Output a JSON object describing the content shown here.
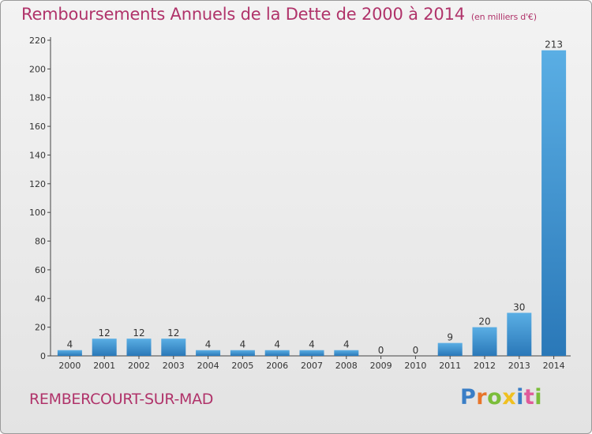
{
  "header": {
    "title": "Remboursements Annuels de la Dette de 2000 à 2014",
    "unit": "(en milliers d'€)"
  },
  "footer": {
    "commune": "REMBERCOURT-SUR-MAD",
    "logo": "Proxiti"
  },
  "colors": {
    "title": "#b0336a",
    "bar_light": "#5aaee4",
    "bar_dark": "#2a78b8",
    "logo_p": "#3a7ec6",
    "logo_r": "#e8752a",
    "logo_o": "#7bbd3a",
    "logo_x": "#f0c020",
    "logo_i": "#3a7ec6",
    "logo_t": "#e05a9a",
    "logo_i2": "#7bbd3a"
  },
  "chart_data": {
    "type": "bar",
    "title": "Remboursements Annuels de la Dette de 2000 à 2014",
    "unit": "(en milliers d'€)",
    "categories": [
      "2000",
      "2001",
      "2002",
      "2003",
      "2004",
      "2005",
      "2006",
      "2007",
      "2008",
      "2009",
      "2010",
      "2011",
      "2012",
      "2013",
      "2014"
    ],
    "values": [
      4,
      12,
      12,
      12,
      4,
      4,
      4,
      4,
      4,
      0,
      0,
      9,
      20,
      30,
      213
    ],
    "ylim": [
      0,
      220
    ],
    "yticks": [
      0,
      20,
      40,
      60,
      80,
      100,
      120,
      140,
      160,
      180,
      200,
      220
    ],
    "grid": false,
    "xlabel": "",
    "ylabel": ""
  }
}
